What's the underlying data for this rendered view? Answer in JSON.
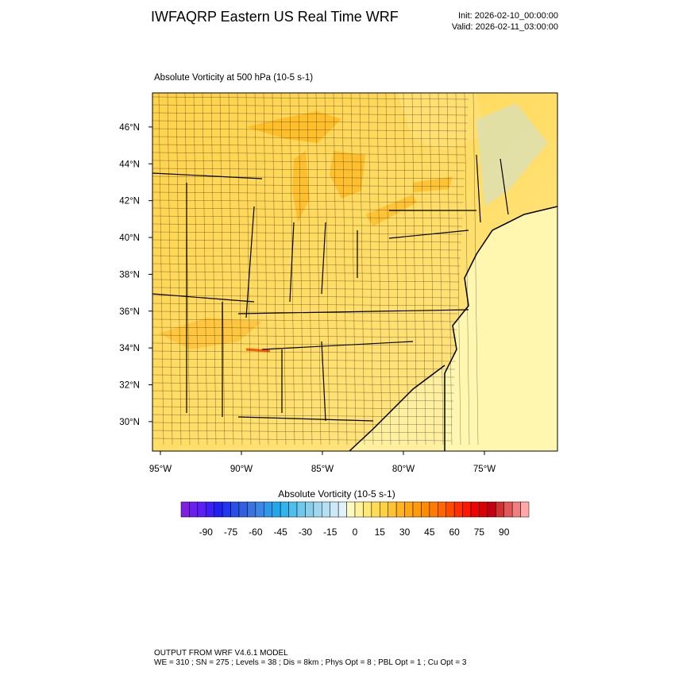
{
  "header": {
    "title": "IWFAQRP Eastern US Real Time WRF",
    "init": "Init: 2026-02-10_00:00:00",
    "valid": "Valid: 2026-02-11_03:00:00"
  },
  "map": {
    "title": "Absolute Vorticity at 500 hPa   (10-5 s-1)",
    "lat_range": [
      28.4,
      47.85
    ],
    "lon_range": [
      -95.49,
      -70.49
    ],
    "lat_ticks": [
      {
        "value": 30,
        "label": "30°N"
      },
      {
        "value": 32,
        "label": "32°N"
      },
      {
        "value": 34,
        "label": "34°N"
      },
      {
        "value": 36,
        "label": "36°N"
      },
      {
        "value": 38,
        "label": "38°N"
      },
      {
        "value": 40,
        "label": "40°N"
      },
      {
        "value": 42,
        "label": "42°N"
      },
      {
        "value": 44,
        "label": "44°N"
      },
      {
        "value": 46,
        "label": "46°N"
      }
    ],
    "lon_ticks": [
      {
        "value": -95,
        "label": "95°W"
      },
      {
        "value": -90,
        "label": "90°W"
      },
      {
        "value": -85,
        "label": "85°W"
      },
      {
        "value": -80,
        "label": "80°W"
      },
      {
        "value": -75,
        "label": "75°W"
      }
    ]
  },
  "colorbar": {
    "title": "Absolute Vorticity  (10-5 s-1)",
    "range": [
      -105,
      105
    ],
    "ticks": [
      -90,
      -75,
      -60,
      -45,
      -30,
      -15,
      0,
      15,
      30,
      45,
      60,
      75,
      90
    ],
    "colors": [
      "#7f1fe0",
      "#6a1ff0",
      "#5a20f5",
      "#3c20f5",
      "#2020f0",
      "#2038f0",
      "#2850e8",
      "#3060e0",
      "#3a72e0",
      "#3c86e6",
      "#2f99ea",
      "#1fa8ec",
      "#30b4ee",
      "#4cbfee",
      "#6ec8ee",
      "#88cfec",
      "#9ed7ee",
      "#b4e0f2",
      "#cbe9f6",
      "#e0f2fa",
      "#fffac0",
      "#fff299",
      "#ffe873",
      "#ffdc55",
      "#ffd040",
      "#ffc230",
      "#ffb420",
      "#ffa610",
      "#ff9a08",
      "#ff8c00",
      "#ff7a00",
      "#ff6600",
      "#ff4a00",
      "#ff3000",
      "#ff1800",
      "#f00000",
      "#d80000",
      "#c00010",
      "#d03030",
      "#e05858",
      "#f08080",
      "#ffa8a8"
    ]
  },
  "footer": {
    "line1": "OUTPUT FROM WRF V4.6.1 MODEL",
    "line2": "WE = 310 ; SN = 275 ; Levels = 38 ; Dis = 8km ; Phys Opt = 8 ; PBL Opt = 1 ; Cu Opt = 3"
  }
}
